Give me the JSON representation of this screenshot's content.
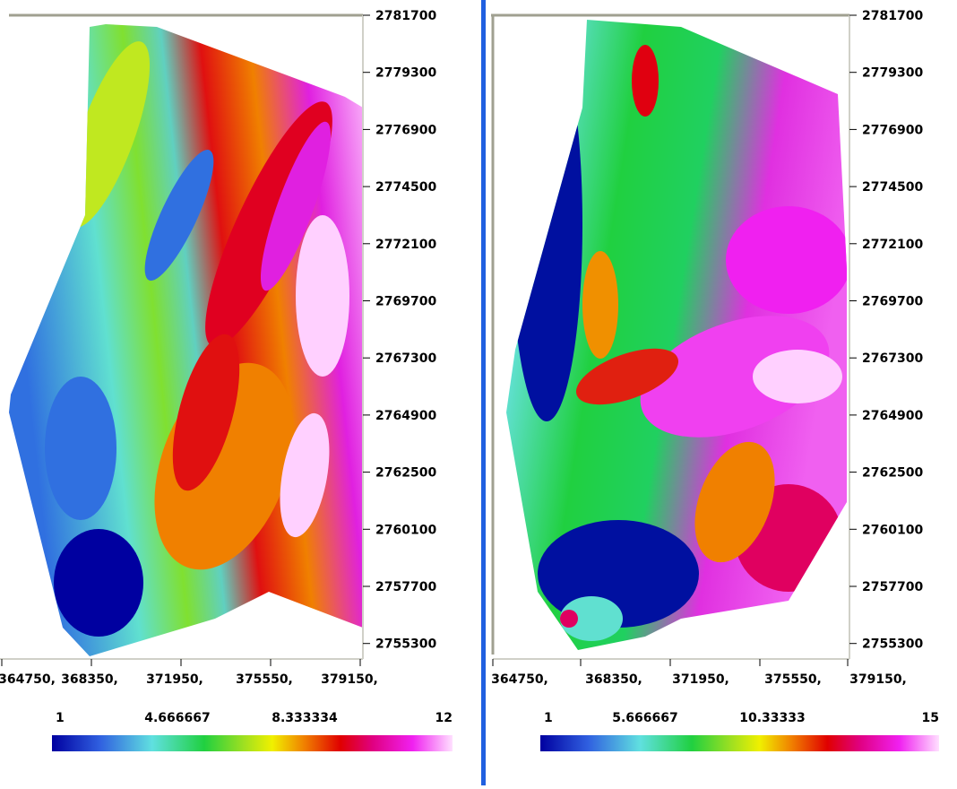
{
  "left_map": {
    "y_labels": [
      "2781700",
      "2779300",
      "2776900",
      "2774500",
      "2772100",
      "2769700",
      "2767300",
      "2764900",
      "2762500",
      "2760100",
      "2757700",
      "2755300"
    ],
    "x_labels": [
      "364750,",
      "368350,",
      "371950,",
      "375550,",
      "379150,"
    ],
    "scale_labels": [
      "1",
      "4.666667",
      "8.333334",
      "12"
    ]
  },
  "right_map": {
    "y_labels": [
      "2781700",
      "2779300",
      "2776900",
      "2774500",
      "2772100",
      "2769700",
      "2767300",
      "2764900",
      "2762500",
      "2760100",
      "2757700",
      "2755300"
    ],
    "x_labels": [
      "364750,",
      "368350,",
      "371950,",
      "375550,",
      "379150,"
    ],
    "scale_labels": [
      "1",
      "5.666667",
      "10.33333",
      "15"
    ]
  }
}
